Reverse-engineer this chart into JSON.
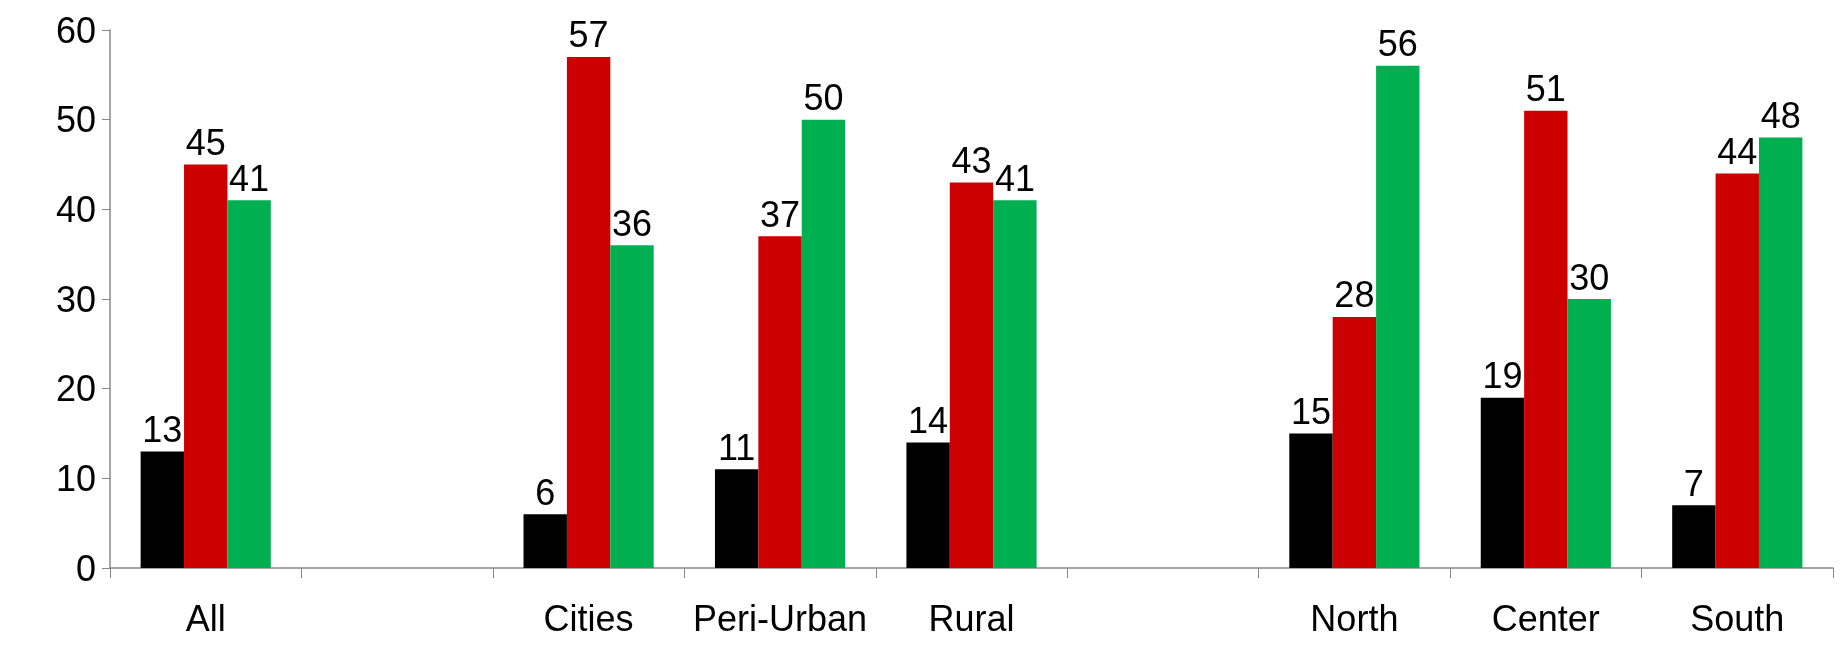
{
  "chart_data": {
    "type": "bar",
    "categories": [
      "All",
      null,
      "Cities",
      "Peri-Urban",
      "Rural",
      null,
      "North",
      "Center",
      "South"
    ],
    "series": [
      {
        "color": "#000000",
        "values": [
          13,
          null,
          6,
          11,
          14,
          null,
          15,
          19,
          7
        ]
      },
      {
        "color": "#cc0000",
        "values": [
          45,
          null,
          57,
          37,
          43,
          null,
          28,
          51,
          44
        ]
      },
      {
        "color": "#00b050",
        "values": [
          41,
          null,
          36,
          50,
          41,
          null,
          56,
          30,
          48
        ]
      }
    ],
    "ylim": [
      0,
      60
    ],
    "yticks": [
      0,
      10,
      20,
      30,
      40,
      50,
      60
    ],
    "data_labels": true
  }
}
